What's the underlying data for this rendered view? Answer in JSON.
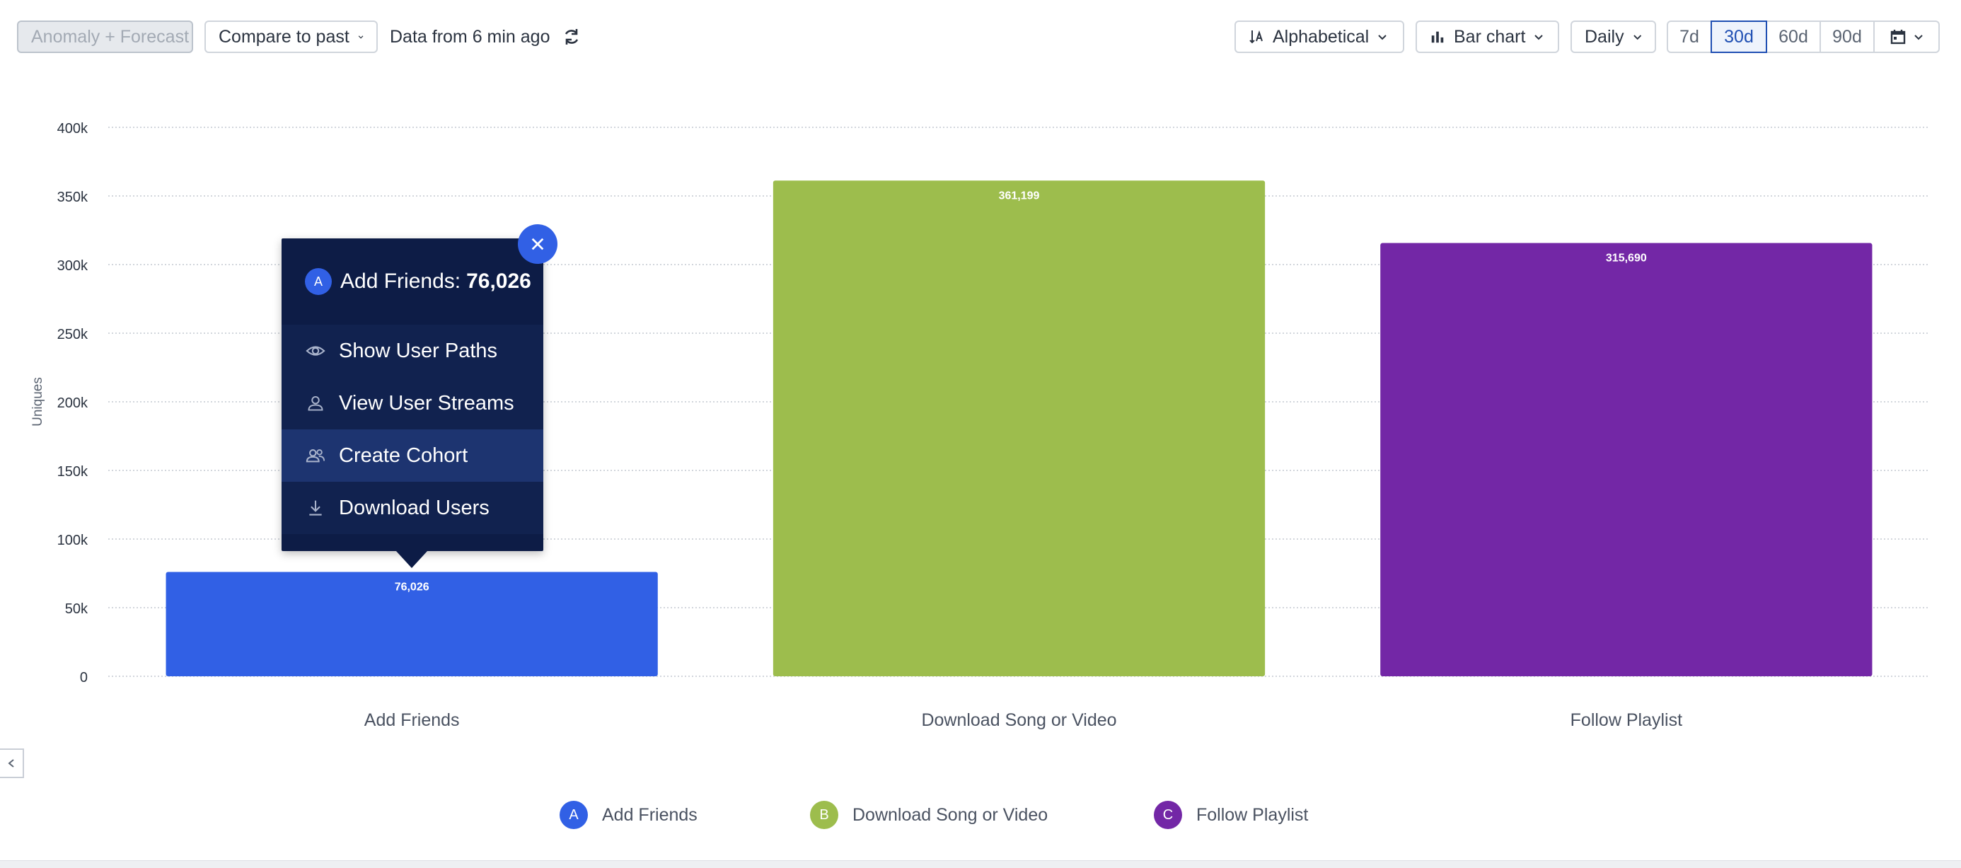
{
  "toolbar": {
    "anomaly_label": "Anomaly + Forecast",
    "compare_label": "Compare to past",
    "freshness_text": "Data from 6 min ago",
    "sort_label": "Alphabetical",
    "chart_type_label": "Bar chart",
    "interval_label": "Daily",
    "ranges": [
      "7d",
      "30d",
      "60d",
      "90d"
    ],
    "active_range": "30d"
  },
  "tooltip": {
    "badge": "A",
    "title": "Add Friends:",
    "value": "76,026",
    "items": [
      {
        "label": "Show User Paths",
        "icon": "eye-icon"
      },
      {
        "label": "View User Streams",
        "icon": "user-icon"
      },
      {
        "label": "Create Cohort",
        "icon": "users-icon"
      },
      {
        "label": "Download Users",
        "icon": "download-icon"
      }
    ]
  },
  "legend": [
    {
      "badge": "A",
      "label": "Add Friends",
      "color": "#3160e5"
    },
    {
      "badge": "B",
      "label": "Download Song or Video",
      "color": "#9dbd4d"
    },
    {
      "badge": "C",
      "label": "Follow Playlist",
      "color": "#7327a6"
    }
  ],
  "chart_data": {
    "type": "bar",
    "categories": [
      "Add Friends",
      "Download Song or Video",
      "Follow Playlist"
    ],
    "values": [
      76026,
      361199,
      315690
    ],
    "value_labels": [
      "76,026",
      "361,199",
      "315,690"
    ],
    "colors": [
      "#3160e5",
      "#9dbd4d",
      "#7327a6"
    ],
    "ylabel": "Uniques",
    "ylim": [
      0,
      400000
    ],
    "yticks": [
      0,
      50000,
      100000,
      150000,
      200000,
      250000,
      300000,
      350000,
      400000
    ],
    "ytick_labels": [
      "0",
      "50k",
      "100k",
      "150k",
      "200k",
      "250k",
      "300k",
      "350k",
      "400k"
    ],
    "grid": true
  }
}
